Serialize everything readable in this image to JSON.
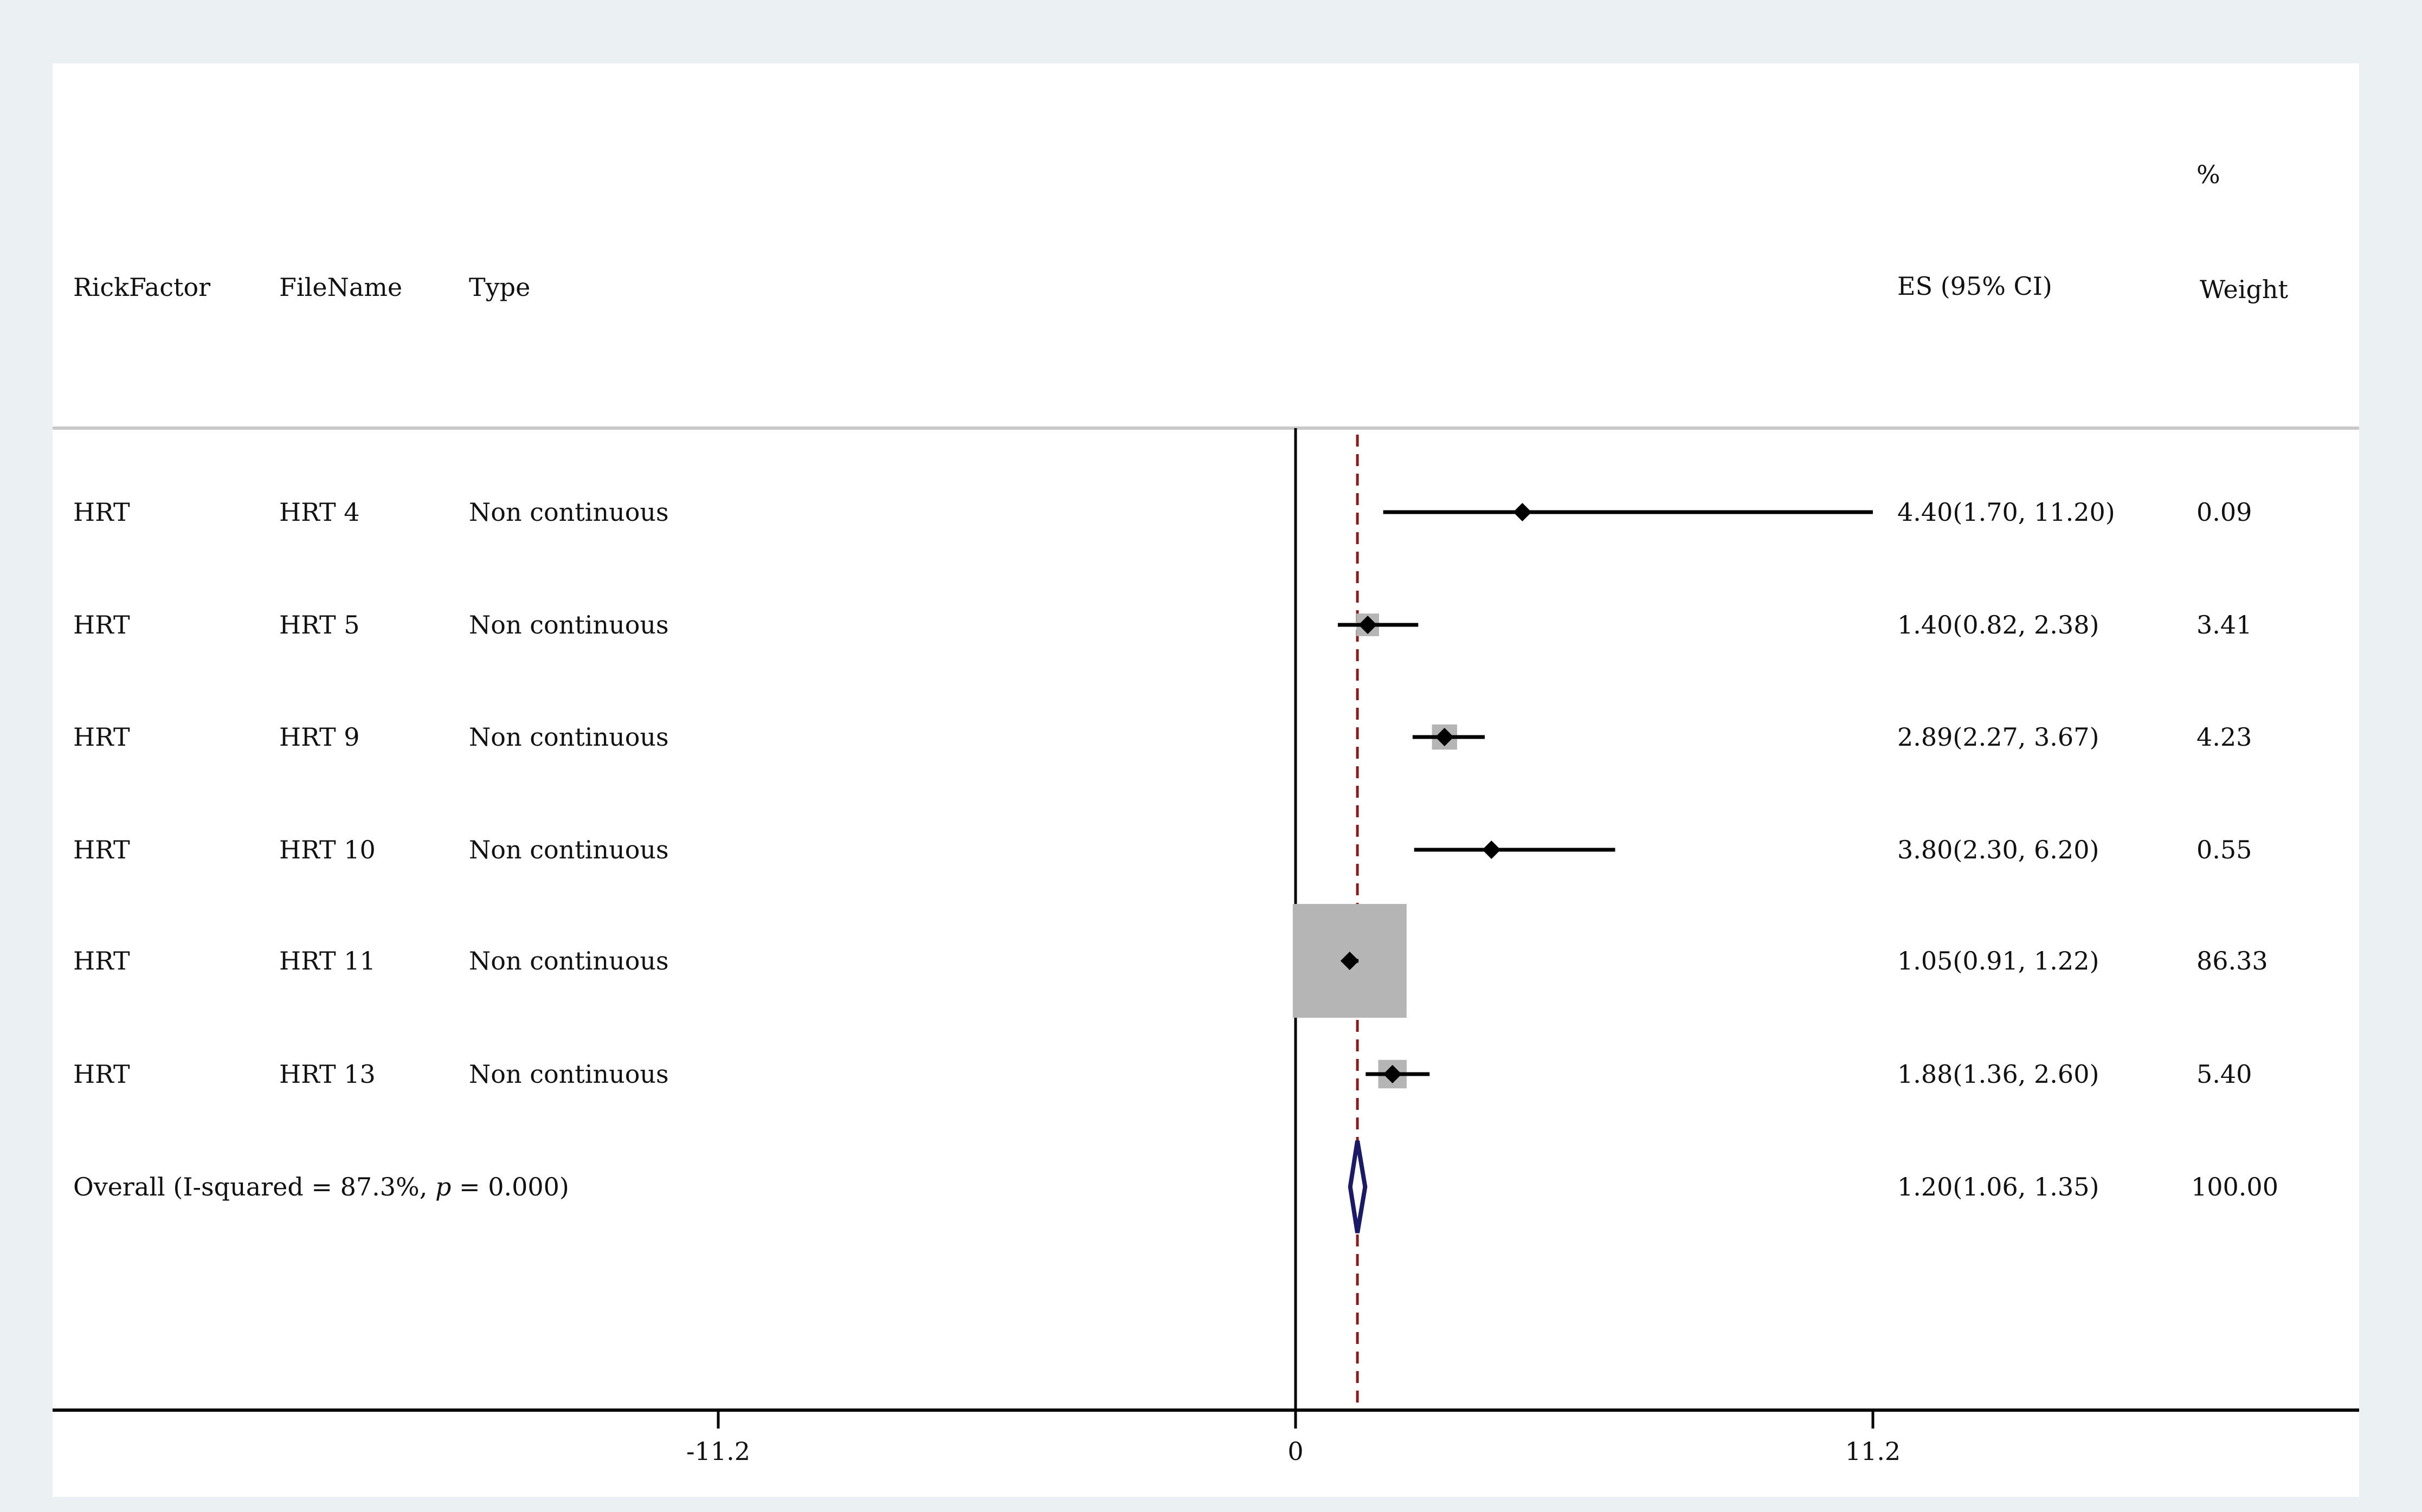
{
  "colors": {
    "outer_background": "#ebf1f3",
    "plot_background": "#ffffff",
    "point": "#000000",
    "weight_box": "#b5b5b5",
    "overall_line": "#8b1a1a",
    "overall_diamond": "#1a1a66",
    "separator": "#c8c8c8"
  },
  "chart_data": {
    "type": "forest",
    "columns": {
      "risk_factor": "RickFactor",
      "file_name": "FileName",
      "type": "Type",
      "es_ci": "ES (95% CI)",
      "weight_pct": "%",
      "weight": "Weight"
    },
    "x_axis": {
      "ticks": [
        -11.2,
        0,
        11.2
      ],
      "tick_labels": [
        "-11.2",
        "0",
        "11.2"
      ],
      "range": [
        -24.05,
        20.55
      ],
      "null_line": 0
    },
    "overall_line_value": 1.2,
    "studies": [
      {
        "risk_factor": "HRT",
        "file_name": "HRT 4",
        "type": "Non continuous",
        "es": 4.4,
        "lower": 1.7,
        "upper": 11.2,
        "es_ci": "4.40(1.70, 11.20)",
        "weight": 0.09,
        "weight_label": "0.09"
      },
      {
        "risk_factor": "HRT",
        "file_name": "HRT 5",
        "type": "Non continuous",
        "es": 1.4,
        "lower": 0.82,
        "upper": 2.38,
        "es_ci": "1.40(0.82, 2.38)",
        "weight": 3.41,
        "weight_label": "3.41"
      },
      {
        "risk_factor": "HRT",
        "file_name": "HRT 9",
        "type": "Non continuous",
        "es": 2.89,
        "lower": 2.27,
        "upper": 3.67,
        "es_ci": "2.89(2.27, 3.67)",
        "weight": 4.23,
        "weight_label": "4.23"
      },
      {
        "risk_factor": "HRT",
        "file_name": "HRT 10",
        "type": "Non continuous",
        "es": 3.8,
        "lower": 2.3,
        "upper": 6.2,
        "es_ci": "3.80(2.30, 6.20)",
        "weight": 0.55,
        "weight_label": "0.55"
      },
      {
        "risk_factor": "HRT",
        "file_name": "HRT 11",
        "type": "Non continuous",
        "es": 1.05,
        "lower": 0.91,
        "upper": 1.22,
        "es_ci": "1.05(0.91, 1.22)",
        "weight": 86.33,
        "weight_label": "86.33"
      },
      {
        "risk_factor": "HRT",
        "file_name": "HRT 13",
        "type": "Non continuous",
        "es": 1.88,
        "lower": 1.36,
        "upper": 2.6,
        "es_ci": "1.88(1.36, 2.60)",
        "weight": 5.4,
        "weight_label": "5.40"
      }
    ],
    "overall": {
      "label_prefix": "Overall (I-squared = 87.3%, ",
      "label_p": "p",
      "label_suffix": " = 0.000)",
      "es": 1.2,
      "lower": 1.06,
      "upper": 1.35,
      "es_ci": "1.20(1.06, 1.35)",
      "weight_label": "100.00"
    }
  }
}
